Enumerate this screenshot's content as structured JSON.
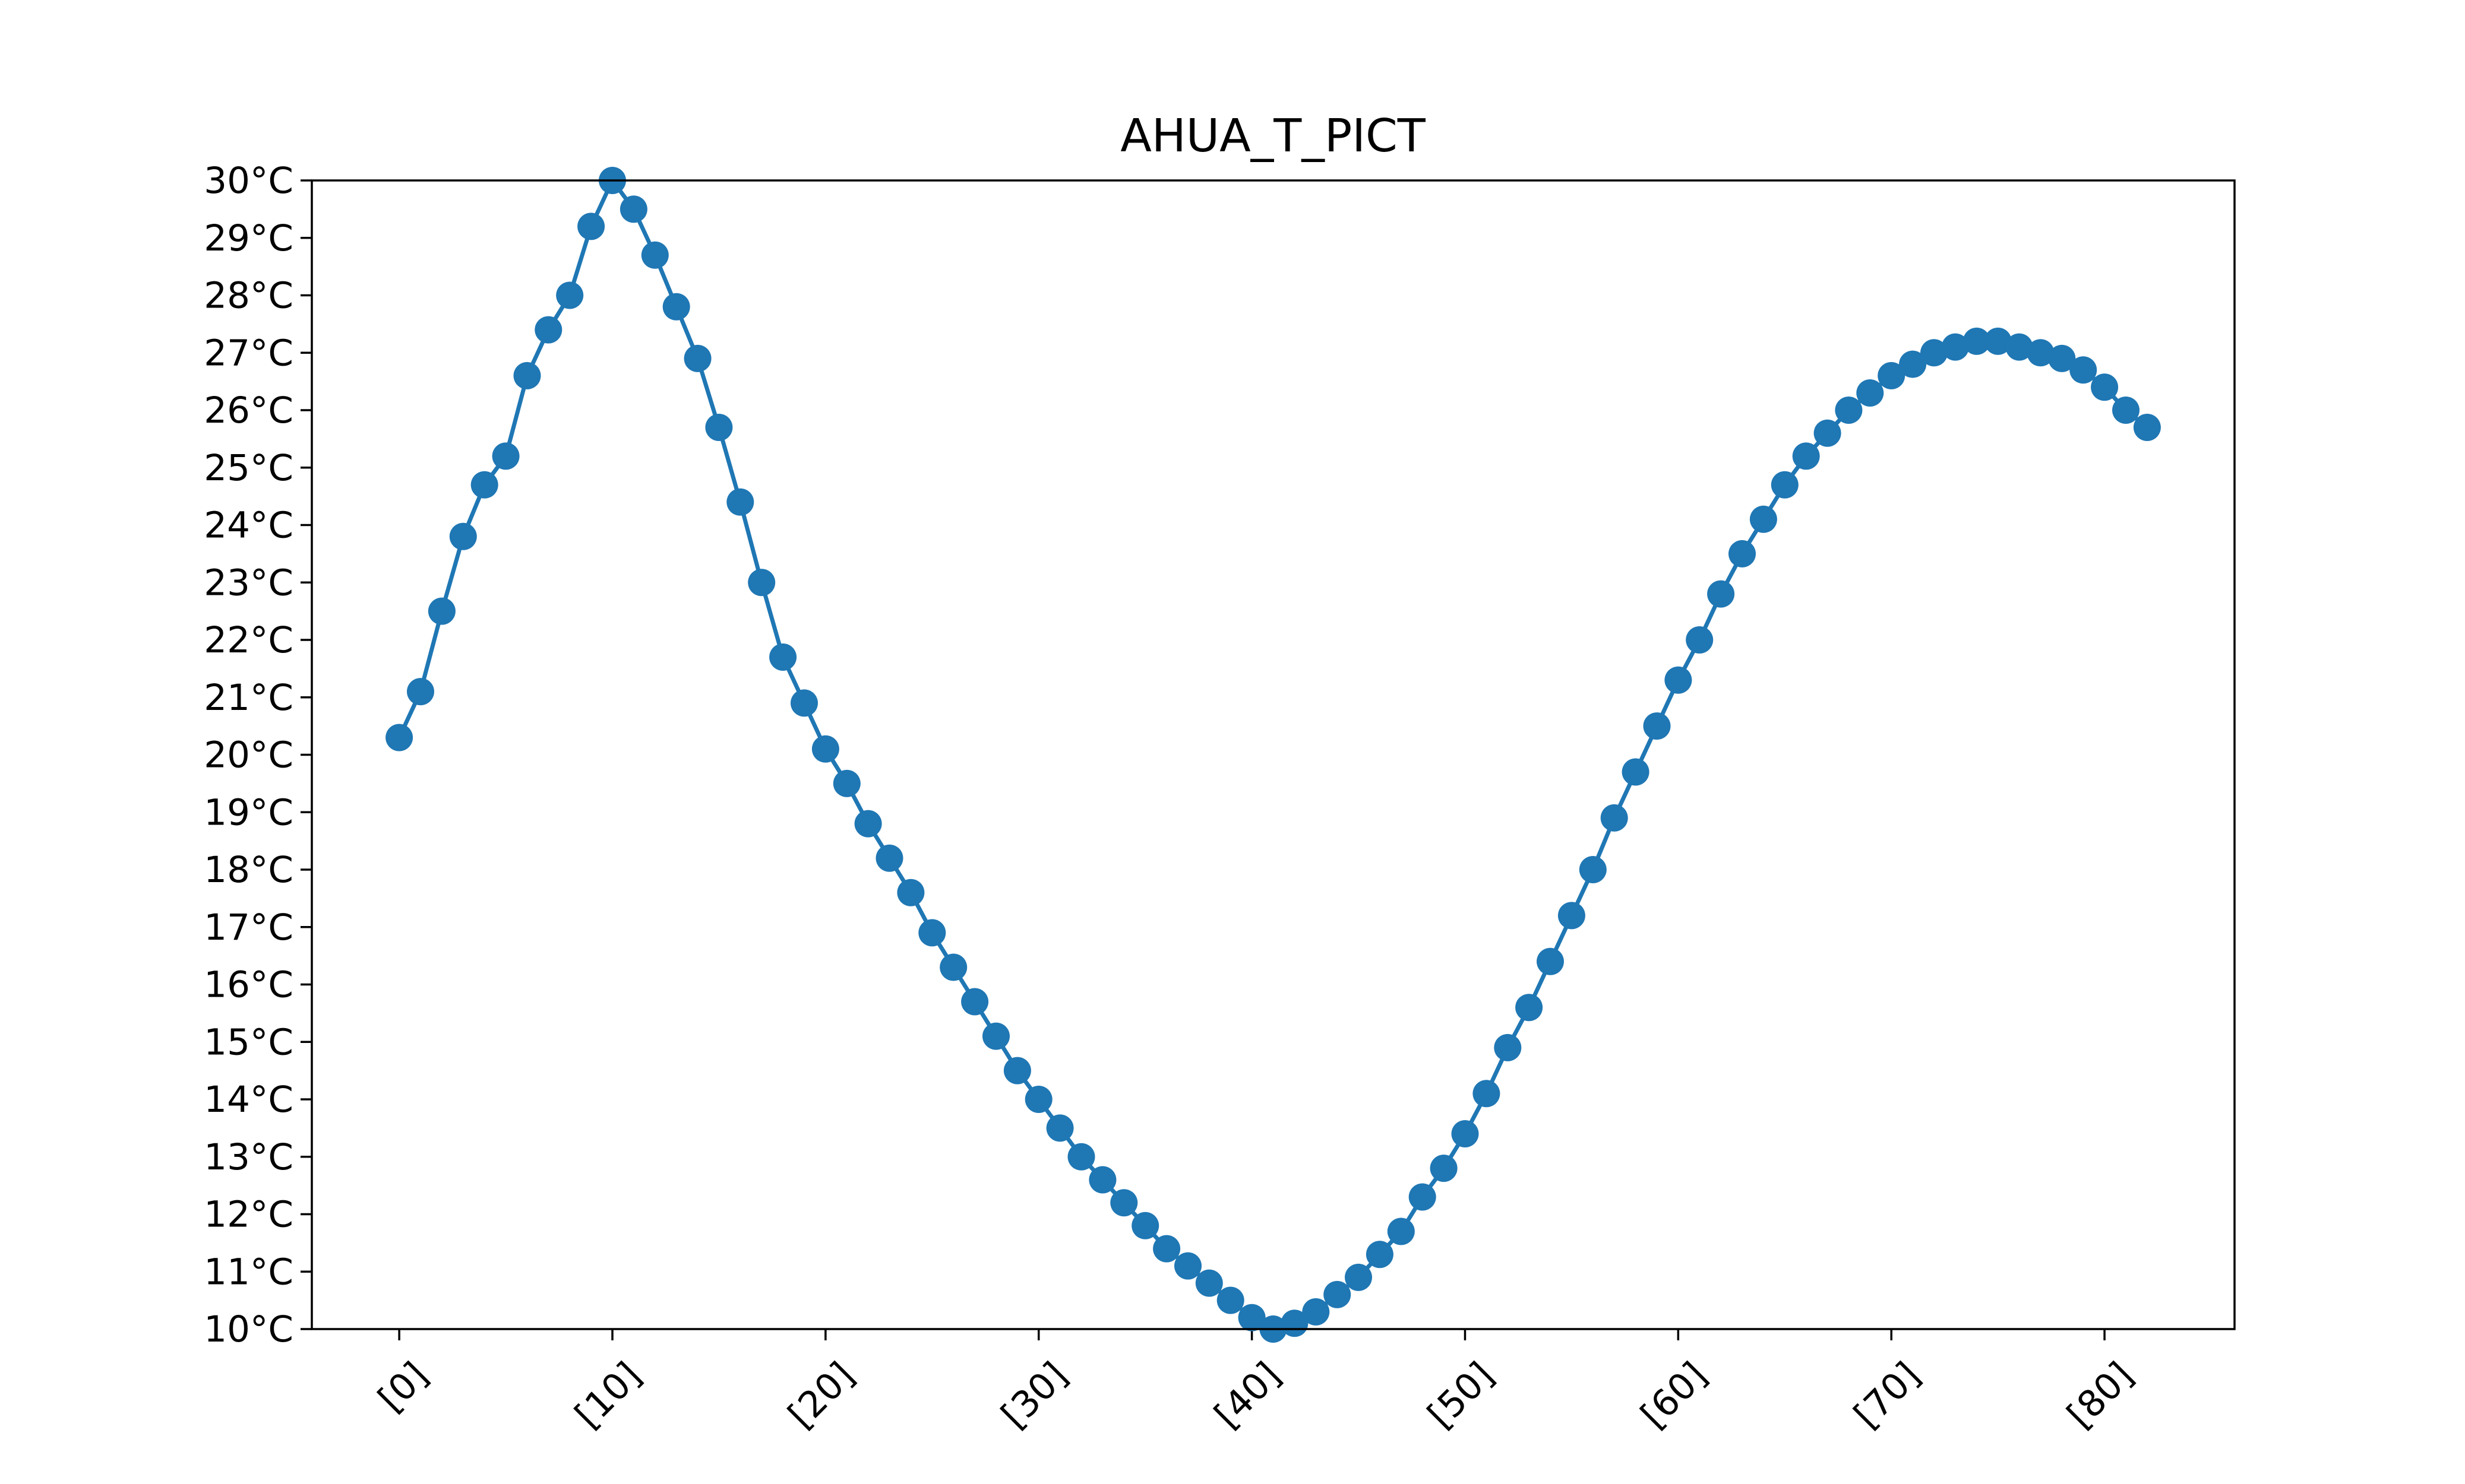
{
  "chart_data": {
    "type": "line",
    "title": "AHUA_T_PICT",
    "xlabel": "",
    "ylabel": "",
    "xlim": [
      -4.1,
      86.1
    ],
    "ylim": [
      10,
      30
    ],
    "x_ticks": [
      0,
      10,
      20,
      30,
      40,
      50,
      60,
      70,
      80
    ],
    "x_tick_labels": [
      "[0]",
      "[10]",
      "[20]",
      "[30]",
      "[40]",
      "[50]",
      "[60]",
      "[70]",
      "[80]"
    ],
    "y_ticks": [
      10,
      11,
      12,
      13,
      14,
      15,
      16,
      17,
      18,
      19,
      20,
      21,
      22,
      23,
      24,
      25,
      26,
      27,
      28,
      29,
      30
    ],
    "y_tick_labels": [
      "10°C",
      "11°C",
      "12°C",
      "13°C",
      "14°C",
      "15°C",
      "16°C",
      "17°C",
      "18°C",
      "19°C",
      "20°C",
      "21°C",
      "22°C",
      "23°C",
      "24°C",
      "25°C",
      "26°C",
      "27°C",
      "28°C",
      "29°C",
      "30°C"
    ],
    "grid": false,
    "series": [
      {
        "color": "#1f77b4",
        "marker": "circle",
        "values": [
          20.3,
          21.1,
          22.5,
          23.8,
          24.7,
          25.2,
          26.6,
          27.4,
          28.0,
          29.2,
          30.0,
          29.5,
          28.7,
          27.8,
          26.9,
          25.7,
          24.4,
          23.0,
          21.7,
          20.9,
          20.1,
          19.5,
          18.8,
          18.2,
          17.6,
          16.9,
          16.3,
          15.7,
          15.1,
          14.5,
          14.0,
          13.5,
          13.0,
          12.6,
          12.2,
          11.8,
          11.4,
          11.1,
          10.8,
          10.5,
          10.2,
          10.0,
          10.1,
          10.3,
          10.6,
          10.9,
          11.3,
          11.7,
          12.3,
          12.8,
          13.4,
          14.1,
          14.9,
          15.6,
          16.4,
          17.2,
          18.0,
          18.9,
          19.7,
          20.5,
          21.3,
          22.0,
          22.8,
          23.5,
          24.1,
          24.7,
          25.2,
          25.6,
          26.0,
          26.3,
          26.6,
          26.8,
          27.0,
          27.1,
          27.2,
          27.2,
          27.1,
          27.0,
          26.9,
          26.7,
          26.4,
          26.0,
          25.7
        ]
      }
    ]
  }
}
